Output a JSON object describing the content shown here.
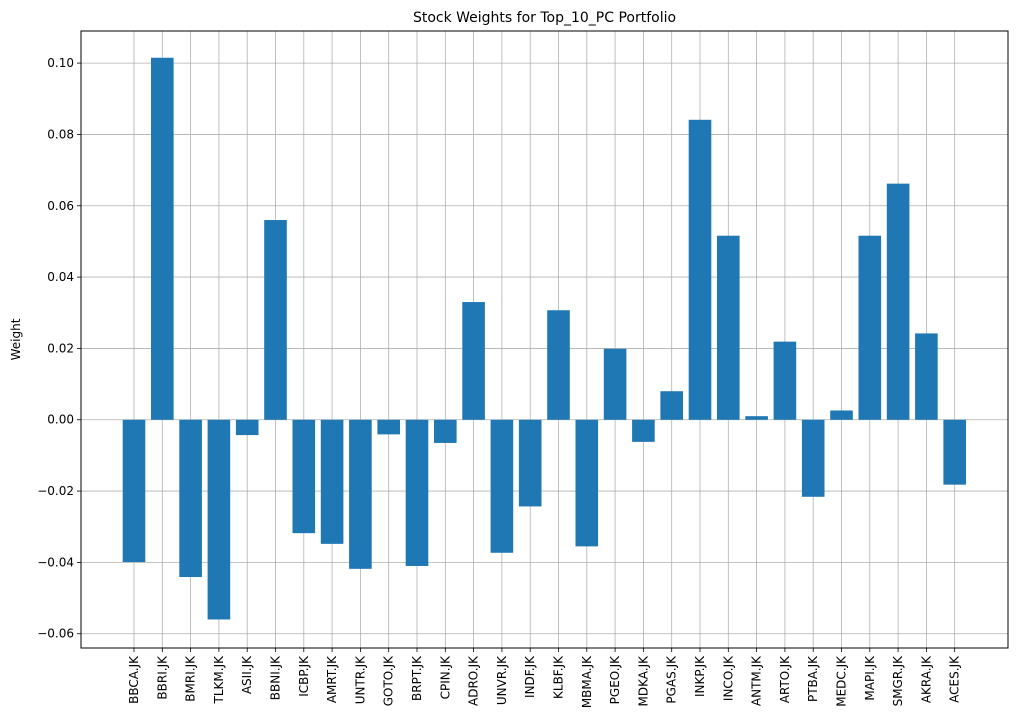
{
  "chart_data": {
    "type": "bar",
    "title": "Stock Weights for Top_10_PC Portfolio",
    "xlabel": "",
    "ylabel": "Weight",
    "ylim": [
      -0.064,
      0.109
    ],
    "yticks": [
      -0.06,
      -0.04,
      -0.02,
      0.0,
      0.02,
      0.04,
      0.06,
      0.08,
      0.1
    ],
    "ytick_labels": [
      "−0.06",
      "−0.04",
      "−0.02",
      "0.00",
      "0.02",
      "0.04",
      "0.06",
      "0.08",
      "0.10"
    ],
    "grid": true,
    "bar_color": "#1f77b4",
    "categories": [
      "BBCA.JK",
      "BBRI.JK",
      "BMRI.JK",
      "TLKM.JK",
      "ASII.JK",
      "BBNI.JK",
      "ICBP.JK",
      "AMRT.JK",
      "UNTR.JK",
      "GOTO.JK",
      "BRPT.JK",
      "CPIN.JK",
      "ADRO.JK",
      "UNVR.JK",
      "INDF.JK",
      "KLBF.JK",
      "MBMA.JK",
      "PGEO.JK",
      "MDKA.JK",
      "PGAS.JK",
      "INKP.JK",
      "INCO.JK",
      "ANTM.JK",
      "ARTO.JK",
      "PTBA.JK",
      "MEDC.JK",
      "MAPI.JK",
      "SMGR.JK",
      "AKRA.JK",
      "ACES.JK"
    ],
    "values": [
      -0.0399,
      0.1015,
      -0.0441,
      -0.056,
      -0.0043,
      0.056,
      -0.0318,
      -0.0348,
      -0.0418,
      -0.0041,
      -0.041,
      -0.0065,
      0.033,
      -0.0373,
      -0.0243,
      0.0307,
      -0.0355,
      0.0199,
      -0.0062,
      0.008,
      0.0841,
      0.0516,
      0.001,
      0.0219,
      -0.0216,
      0.0026,
      0.0516,
      0.0662,
      0.0242,
      -0.0182
    ]
  }
}
